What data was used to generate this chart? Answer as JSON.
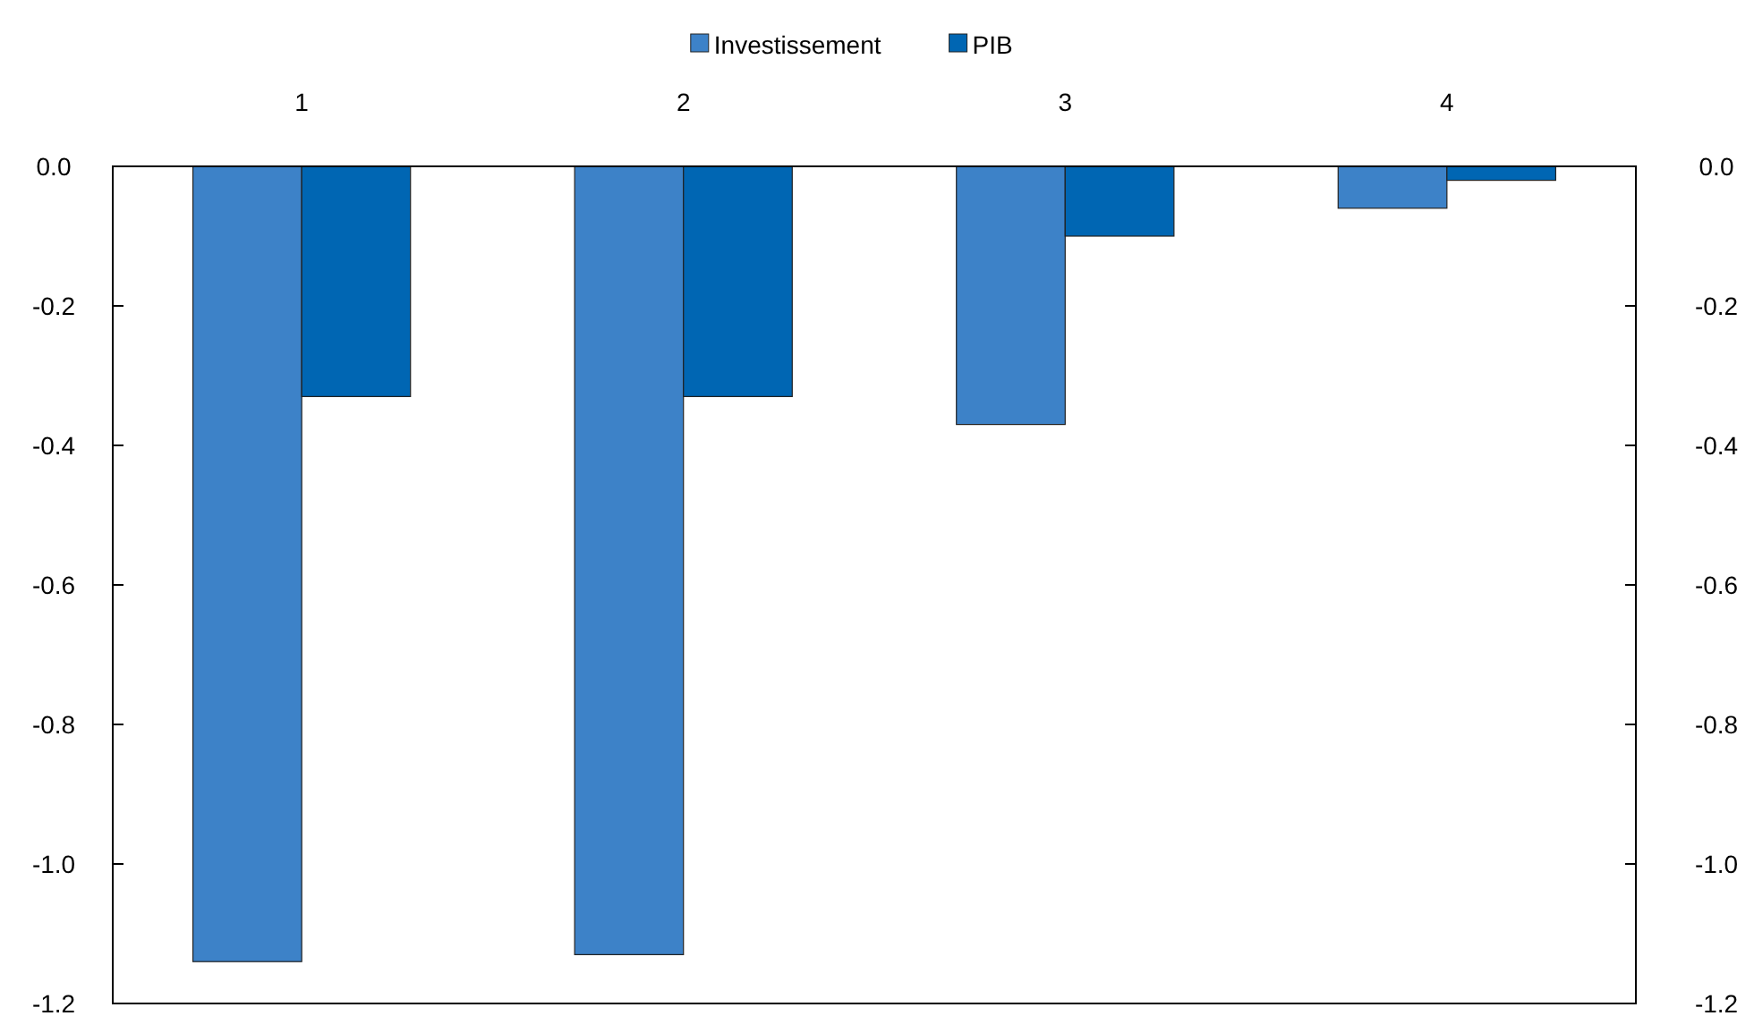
{
  "chart_data": {
    "type": "bar",
    "categories": [
      "1",
      "2",
      "3",
      "4"
    ],
    "series": [
      {
        "name": "Investissement",
        "color": "#3d82c8",
        "values": [
          -1.14,
          -1.13,
          -0.37,
          -0.06
        ]
      },
      {
        "name": "PIB",
        "color": "#0066b3",
        "values": [
          -0.33,
          -0.33,
          -0.1,
          -0.02
        ]
      }
    ],
    "ylim": [
      -1.2,
      0
    ],
    "yticks": [
      {
        "value": 0,
        "label": "0.0"
      },
      -0.2,
      -0.4,
      -0.6,
      -0.8,
      {
        "value": -1,
        "label": "-1.0"
      },
      -1.2
    ],
    "y2lim": [
      -1.2,
      0
    ],
    "y2ticks": [
      {
        "value": 0,
        "label": "0.0"
      },
      -0.2,
      -0.4,
      -0.6,
      -0.8,
      {
        "value": -1,
        "label": "-1.0"
      },
      -1.2
    ],
    "legend": "top",
    "grid": false
  }
}
